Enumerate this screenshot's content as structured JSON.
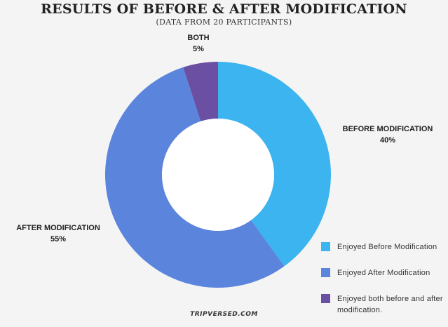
{
  "chart_data": {
    "type": "pie",
    "title": "RESULTS OF BEFORE & AFTER MODIFICATION",
    "subtitle": "(DATA FROM 20 PARTICIPANTS)",
    "slices": [
      {
        "name": "BEFORE MODIFICATION",
        "value": 40,
        "value_label": "40%",
        "color": "#3cb4f0"
      },
      {
        "name": "AFTER MODIFICATION",
        "value": 55,
        "value_label": "55%",
        "color": "#5b84dc"
      },
      {
        "name": "BOTH",
        "value": 5,
        "value_label": "5%",
        "color": "#6a4fa3"
      }
    ],
    "legend": {
      "placement": "bottom-right",
      "items": [
        {
          "label": "Enjoyed Before Modification",
          "color": "#3cb4f0"
        },
        {
          "label": "Enjoyed After Modification",
          "color": "#5b84dc"
        },
        {
          "label": "Enjoyed both before and after modification.",
          "color": "#6a4fa3"
        }
      ]
    },
    "donut": true,
    "watermark": "TRIPVERSED.COM"
  }
}
